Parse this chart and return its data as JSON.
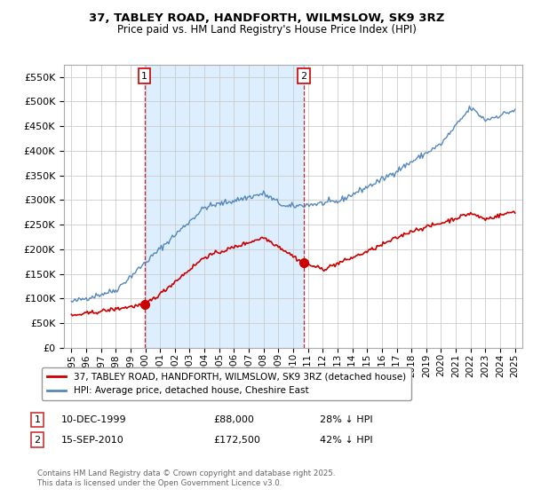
{
  "title_line1": "37, TABLEY ROAD, HANDFORTH, WILMSLOW, SK9 3RZ",
  "title_line2": "Price paid vs. HM Land Registry's House Price Index (HPI)",
  "legend_label_red": "37, TABLEY ROAD, HANDFORTH, WILMSLOW, SK9 3RZ (detached house)",
  "legend_label_blue": "HPI: Average price, detached house, Cheshire East",
  "footnote": "Contains HM Land Registry data © Crown copyright and database right 2025.\nThis data is licensed under the Open Government Licence v3.0.",
  "purchase1_x": 1999.94,
  "purchase1_y": 88000,
  "purchase1_label": "1",
  "purchase1_date": "10-DEC-1999",
  "purchase1_price": "£88,000",
  "purchase1_pct": "28% ↓ HPI",
  "purchase2_x": 2010.71,
  "purchase2_y": 172500,
  "purchase2_label": "2",
  "purchase2_date": "15-SEP-2010",
  "purchase2_price": "£172,500",
  "purchase2_pct": "42% ↓ HPI",
  "ylim": [
    0,
    575000
  ],
  "yticks": [
    0,
    50000,
    100000,
    150000,
    200000,
    250000,
    300000,
    350000,
    400000,
    450000,
    500000,
    550000
  ],
  "xlim": [
    1994.5,
    2025.5
  ],
  "xticks": [
    1995,
    1996,
    1997,
    1998,
    1999,
    2000,
    2001,
    2002,
    2003,
    2004,
    2005,
    2006,
    2007,
    2008,
    2009,
    2010,
    2011,
    2012,
    2013,
    2014,
    2015,
    2016,
    2017,
    2018,
    2019,
    2020,
    2021,
    2022,
    2023,
    2024,
    2025
  ],
  "red_color": "#cc0000",
  "blue_color": "#5588bb",
  "shade_color": "#ddeeff",
  "dashed_color": "#cc0000",
  "background_color": "#ffffff",
  "grid_color": "#cccccc"
}
